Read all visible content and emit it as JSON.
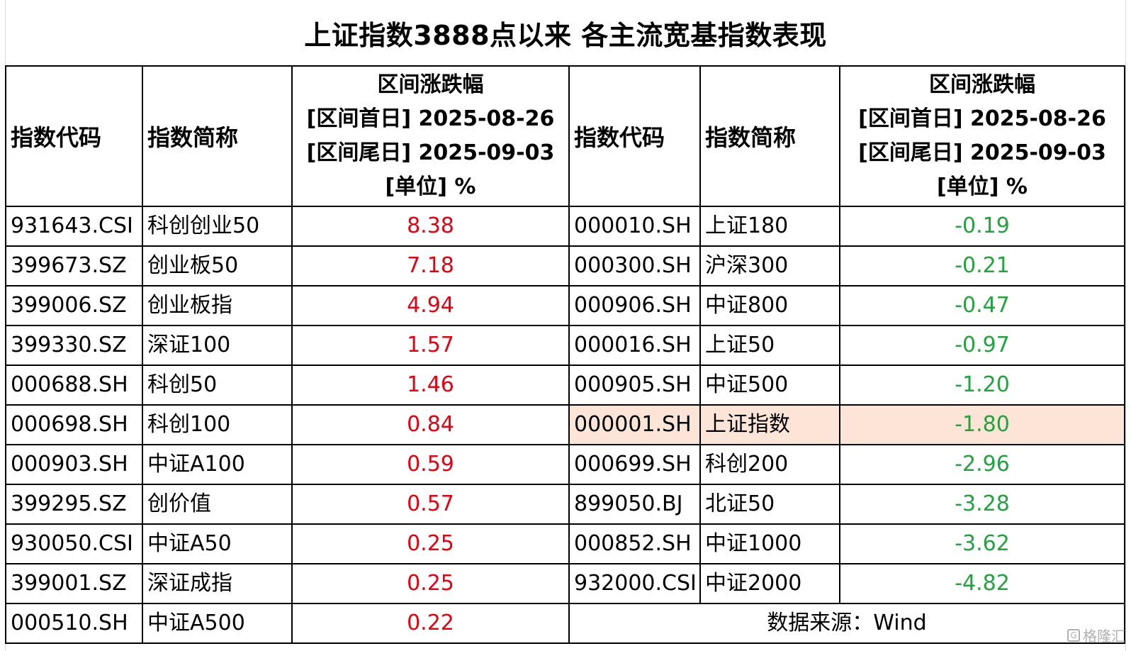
{
  "title": "上证指数3888点以来 各主流宽基指数表现",
  "headers": {
    "code": "指数代码",
    "name": "指数简称",
    "range_lines": [
      "区间涨跌幅",
      "[区间首日] 2025-08-26",
      "[区间尾日] 2025-09-03",
      "[单位] %"
    ]
  },
  "colors": {
    "up": "#e60012",
    "down": "#22a340",
    "highlight_row": "#fce4d6"
  },
  "left_rows": [
    {
      "code": "931643.CSI",
      "name": "科创创业50",
      "value": "8.38"
    },
    {
      "code": "399673.SZ",
      "name": "创业板50",
      "value": "7.18"
    },
    {
      "code": "399006.SZ",
      "name": "创业板指",
      "value": "4.94"
    },
    {
      "code": "399330.SZ",
      "name": "深证100",
      "value": "1.57"
    },
    {
      "code": "000688.SH",
      "name": "科创50",
      "value": "1.46"
    },
    {
      "code": "000698.SH",
      "name": "科创100",
      "value": "0.84"
    },
    {
      "code": "000903.SH",
      "name": "中证A100",
      "value": "0.59"
    },
    {
      "code": "399295.SZ",
      "name": "创价值",
      "value": "0.57"
    },
    {
      "code": "930050.CSI",
      "name": "中证A50",
      "value": "0.25"
    },
    {
      "code": "399001.SZ",
      "name": "深证成指",
      "value": "0.25"
    },
    {
      "code": "000510.SH",
      "name": "中证A500",
      "value": "0.22"
    }
  ],
  "right_rows": [
    {
      "code": "000010.SH",
      "name": "上证180",
      "value": "-0.19"
    },
    {
      "code": "000300.SH",
      "name": "沪深300",
      "value": "-0.21"
    },
    {
      "code": "000906.SH",
      "name": "中证800",
      "value": "-0.47"
    },
    {
      "code": "000016.SH",
      "name": "上证50",
      "value": "-0.97"
    },
    {
      "code": "000905.SH",
      "name": "中证500",
      "value": "-1.20"
    },
    {
      "code": "000001.SH",
      "name": "上证指数",
      "value": "-1.80",
      "highlight": true
    },
    {
      "code": "000699.SH",
      "name": "科创200",
      "value": "-2.96"
    },
    {
      "code": "899050.BJ",
      "name": "北证50",
      "value": "-3.28"
    },
    {
      "code": "000852.SH",
      "name": "中证1000",
      "value": "-3.62"
    },
    {
      "code": "932000.CSI",
      "name": "中证2000",
      "value": "-4.82"
    }
  ],
  "source": "数据来源：Wind",
  "watermark": "格隆汇"
}
